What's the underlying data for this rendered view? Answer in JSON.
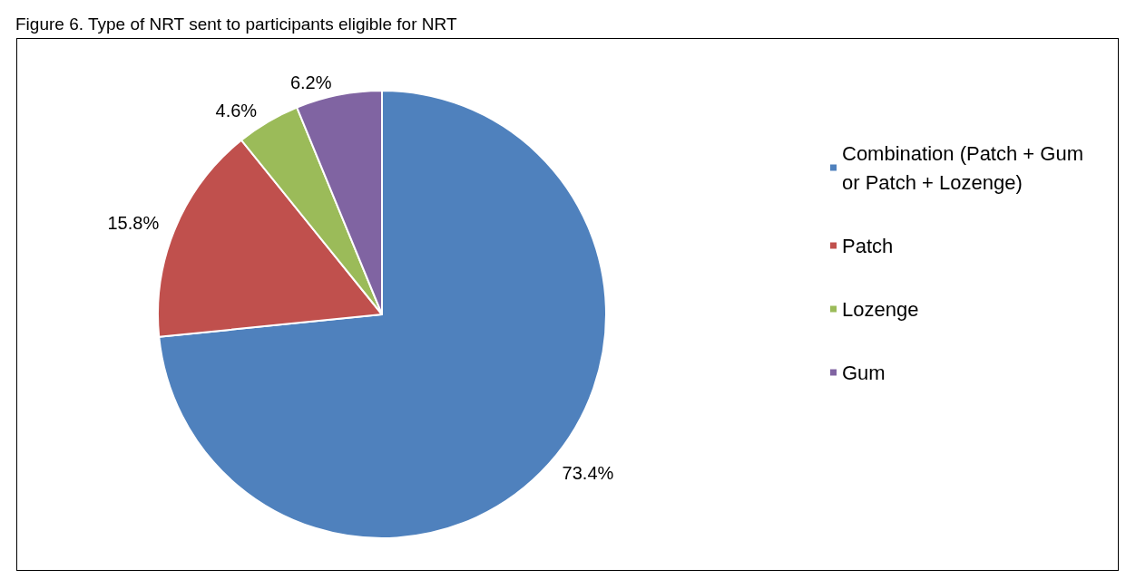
{
  "chart_data": {
    "type": "pie",
    "title": "Figure 6. Type of NRT sent to participants eligible for NRT",
    "categories": [
      "Combination (Patch + Gum or Patch + Lozenge)",
      "Patch",
      "Lozenge",
      "Gum"
    ],
    "values": [
      73.4,
      15.8,
      4.6,
      6.2
    ],
    "colors": [
      "#4f81bd",
      "#c0504d",
      "#9bbb59",
      "#8064a2"
    ],
    "value_labels": [
      "73.4%",
      "15.8%",
      "4.6%",
      "6.2%"
    ],
    "legend": "right"
  }
}
